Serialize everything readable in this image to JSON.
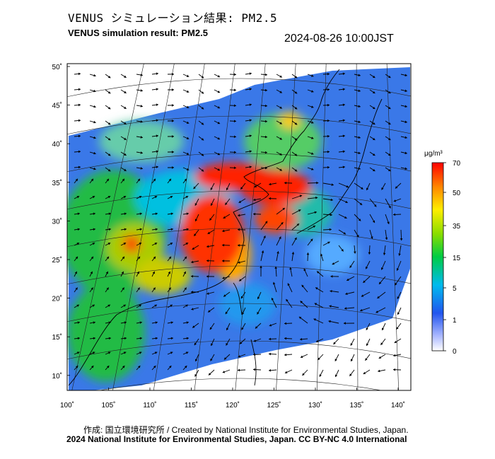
{
  "header": {
    "title_jp": "VENUS シミュレーション結果: PM2.5",
    "title_en": "VENUS simulation result: PM2.5",
    "datetime": "2024-08-26 10:00JST"
  },
  "map": {
    "lat_labels": [
      "50˚",
      "45˚",
      "40˚",
      "35˚",
      "30˚",
      "25˚",
      "20˚",
      "15˚",
      "10˚"
    ],
    "lon_labels": [
      "100˚",
      "105˚",
      "110˚",
      "115˚",
      "120˚",
      "125˚",
      "130˚",
      "135˚",
      "140˚"
    ]
  },
  "colorbar": {
    "unit": "μg/m³",
    "ticks": [
      "70",
      "50",
      "35",
      "15",
      "5",
      "1",
      "0"
    ],
    "colors": [
      "#ff0000",
      "#ff9900",
      "#ffff00",
      "#00cc00",
      "#00bbee",
      "#2255ee",
      "#ffffff"
    ]
  },
  "footer": {
    "credit": "作成: 国立環境研究所 / Created by National Institute for Environmental Studies, Japan.",
    "copyright": "2024 National Institute for Environmental Studies, Japan. CC BY-NC 4.0 International"
  }
}
